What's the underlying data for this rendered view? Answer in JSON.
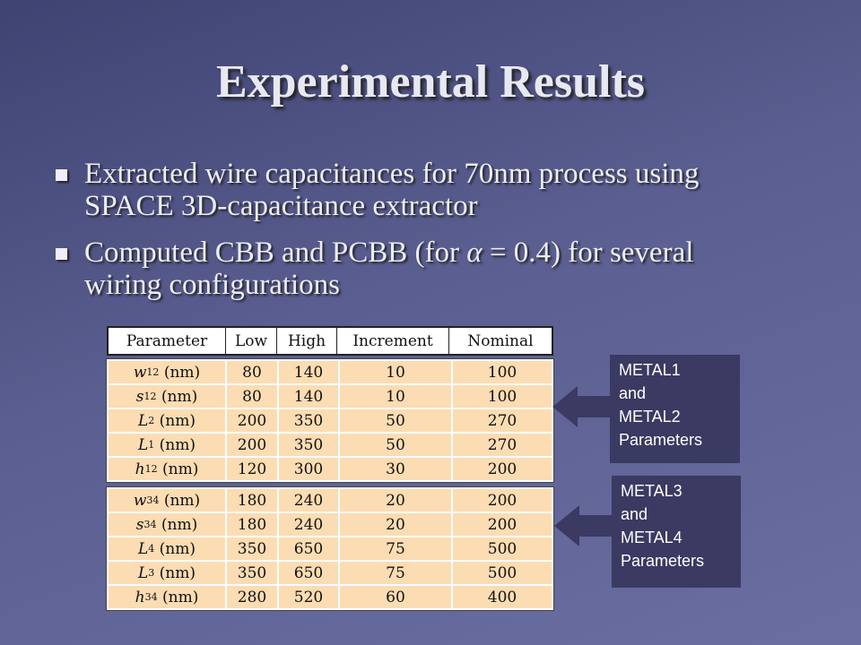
{
  "slide": {
    "title": "Experimental Results",
    "bullets": [
      {
        "text": "Extracted wire capacitances for 70nm process using SPACE 3D-capacitance extractor"
      },
      {
        "pre": "Computed CBB and PCBB (for ",
        "alpha": "α",
        "post": " = 0.4) for several wiring configurations"
      }
    ]
  },
  "table": {
    "headers": [
      "Parameter",
      "Low",
      "High",
      "Increment",
      "Nominal"
    ],
    "unit": "(nm)",
    "group1": [
      {
        "sym": "w",
        "sub": "12",
        "low": "80",
        "high": "140",
        "inc": "10",
        "nom": "100"
      },
      {
        "sym": "s",
        "sub": "12",
        "low": "80",
        "high": "140",
        "inc": "10",
        "nom": "100"
      },
      {
        "sym": "L",
        "sub": "2",
        "low": "200",
        "high": "350",
        "inc": "50",
        "nom": "270"
      },
      {
        "sym": "L",
        "sub": "1",
        "low": "200",
        "high": "350",
        "inc": "50",
        "nom": "270"
      },
      {
        "sym": "h",
        "sub": "12",
        "low": "120",
        "high": "300",
        "inc": "30",
        "nom": "200"
      }
    ],
    "group2": [
      {
        "sym": "w",
        "sub": "34",
        "low": "180",
        "high": "240",
        "inc": "20",
        "nom": "200"
      },
      {
        "sym": "s",
        "sub": "34",
        "low": "180",
        "high": "240",
        "inc": "20",
        "nom": "200"
      },
      {
        "sym": "L",
        "sub": "4",
        "low": "350",
        "high": "650",
        "inc": "75",
        "nom": "500"
      },
      {
        "sym": "L",
        "sub": "3",
        "low": "350",
        "high": "650",
        "inc": "75",
        "nom": "500"
      },
      {
        "sym": "h",
        "sub": "34",
        "low": "280",
        "high": "520",
        "inc": "60",
        "nom": "400"
      }
    ]
  },
  "labels": {
    "metal12": [
      "METAL1",
      "and",
      "METAL2",
      "Parameters"
    ],
    "metal34": [
      "METAL3",
      "and",
      "METAL4",
      "Parameters"
    ]
  },
  "colors": {
    "background": "#5a5e90",
    "table_fill": "#fcdcb2",
    "label_fill": "#3a3a62"
  }
}
